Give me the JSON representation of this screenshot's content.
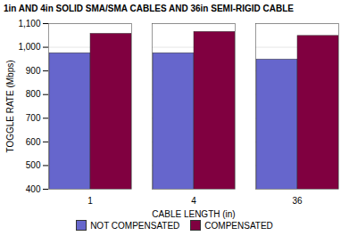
{
  "chart_data": {
    "type": "bar",
    "title": "1in AND 4in SOLID SMA/SMA CABLES AND 36in SEMI-RIGID CABLE",
    "xlabel": "CABLE LENGTH (in)",
    "ylabel": "TOGGLE RATE (Mbps)",
    "categories": [
      "1",
      "4",
      "36"
    ],
    "series": [
      {
        "name": "NOT COMPENSATED",
        "color": "#6666cc",
        "values": [
          975,
          975,
          948
        ]
      },
      {
        "name": "COMPENSATED",
        "color": "#800040",
        "values": [
          1057,
          1065,
          1048
        ]
      }
    ],
    "ylim": [
      400,
      1100
    ],
    "yticks": [
      400,
      500,
      600,
      700,
      800,
      900,
      1000,
      1100
    ],
    "grid": true,
    "legend": "bottom"
  }
}
